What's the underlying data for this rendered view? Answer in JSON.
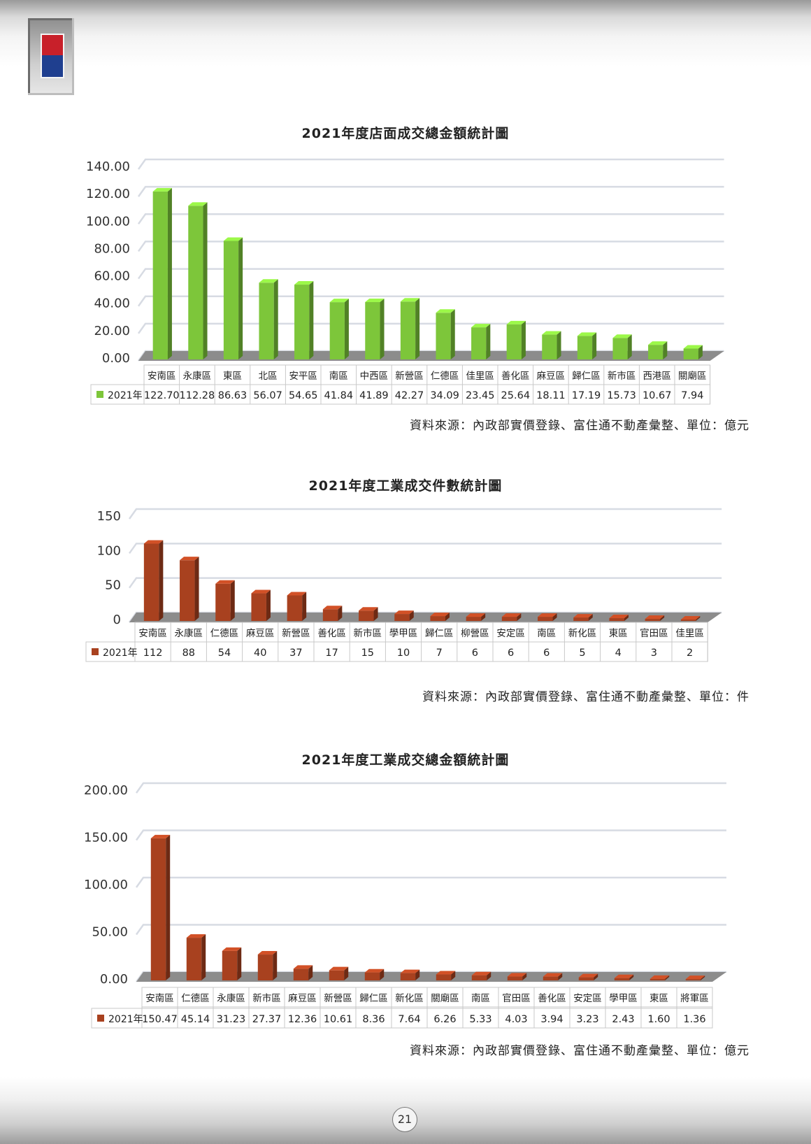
{
  "page_number": "21",
  "colors": {
    "green": "#7dc63a",
    "rust": "#a8411f"
  },
  "charts": [
    {
      "title": "2021年度店面成交總金額統計圖",
      "source": "資料來源：內政部實價登錄、富住通不動產彙整、單位：億元"
    },
    {
      "title": "2021年度工業成交件數統計圖",
      "source": "資料來源：內政部實價登錄、富住通不動產彙整、單位：件"
    },
    {
      "title": "2021年度工業成交總金額統計圖",
      "source": "資料來源：內政部實價登錄、富住通不動產彙整、單位：億元"
    }
  ],
  "chart_data": [
    {
      "type": "bar",
      "title": "2021年度店面成交總金額統計圖",
      "categories": [
        "安南區",
        "永康區",
        "東區",
        "北區",
        "安平區",
        "南區",
        "中西區",
        "新營區",
        "仁德區",
        "佳里區",
        "善化區",
        "麻豆區",
        "歸仁區",
        "新市區",
        "西港區",
        "關廟區"
      ],
      "series": [
        {
          "name": "2021年",
          "values": [
            122.7,
            112.28,
            86.63,
            56.07,
            54.65,
            41.84,
            41.89,
            42.27,
            34.09,
            23.45,
            25.64,
            18.11,
            17.19,
            15.73,
            10.67,
            7.94
          ]
        }
      ],
      "value_labels": [
        "122.70",
        "112.28",
        "86.63",
        "56.07",
        "54.65",
        "41.84",
        "41.89",
        "42.27",
        "34.09",
        "23.45",
        "25.64",
        "18.11",
        "17.19",
        "15.73",
        "10.67",
        "7.94"
      ],
      "yticks": [
        "0.00",
        "20.00",
        "40.00",
        "60.00",
        "80.00",
        "100.00",
        "120.00",
        "140.00"
      ],
      "ylim": [
        0,
        140
      ],
      "color": "#7dc63a",
      "grid": true,
      "legend": "data-table"
    },
    {
      "type": "bar",
      "title": "2021年度工業成交件數統計圖",
      "categories": [
        "安南區",
        "永康區",
        "仁德區",
        "麻豆區",
        "新營區",
        "善化區",
        "新市區",
        "學甲區",
        "歸仁區",
        "柳營區",
        "安定區",
        "南區",
        "新化區",
        "東區",
        "官田區",
        "佳里區"
      ],
      "series": [
        {
          "name": "2021年",
          "values": [
            112,
            88,
            54,
            40,
            37,
            17,
            15,
            10,
            7,
            6,
            6,
            6,
            5,
            4,
            3,
            2
          ]
        }
      ],
      "value_labels": [
        "112",
        "88",
        "54",
        "40",
        "37",
        "17",
        "15",
        "10",
        "7",
        "6",
        "6",
        "6",
        "5",
        "4",
        "3",
        "2"
      ],
      "yticks": [
        "0",
        "50",
        "100",
        "150"
      ],
      "ylim": [
        0,
        150
      ],
      "color": "#a8411f",
      "grid": true,
      "legend": "data-table"
    },
    {
      "type": "bar",
      "title": "2021年度工業成交總金額統計圖",
      "categories": [
        "安南區",
        "仁德區",
        "永康區",
        "新市區",
        "麻豆區",
        "新營區",
        "歸仁區",
        "新化區",
        "關廟區",
        "南區",
        "官田區",
        "善化區",
        "安定區",
        "學甲區",
        "東區",
        "將軍區"
      ],
      "series": [
        {
          "name": "2021年",
          "values": [
            150.47,
            45.14,
            31.23,
            27.37,
            12.36,
            10.61,
            8.36,
            7.64,
            6.26,
            5.33,
            4.03,
            3.94,
            3.23,
            2.43,
            1.6,
            1.36
          ]
        }
      ],
      "value_labels": [
        "150.47",
        "45.14",
        "31.23",
        "27.37",
        "12.36",
        "10.61",
        "8.36",
        "7.64",
        "6.26",
        "5.33",
        "4.03",
        "3.94",
        "3.23",
        "2.43",
        "1.60",
        "1.36"
      ],
      "yticks": [
        "0.00",
        "50.00",
        "100.00",
        "150.00",
        "200.00"
      ],
      "ylim": [
        0,
        200
      ],
      "color": "#a8411f",
      "grid": true,
      "legend": "data-table"
    }
  ]
}
